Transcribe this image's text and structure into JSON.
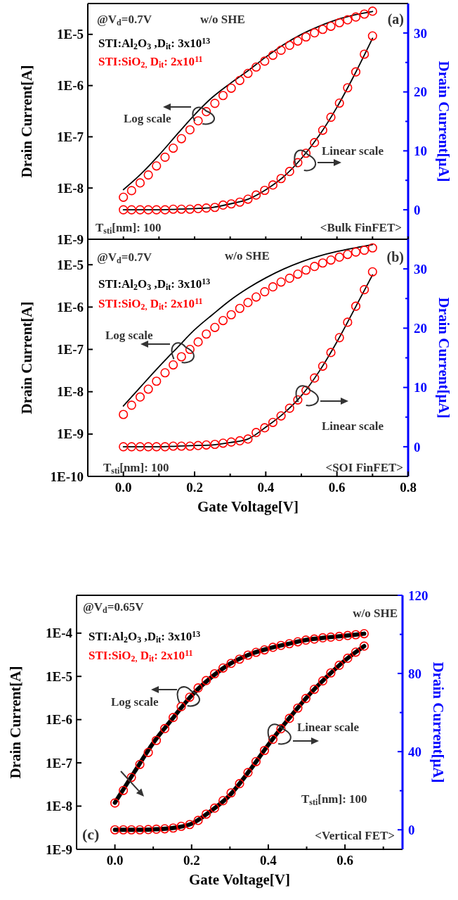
{
  "chart_data": [
    {
      "type": "line",
      "log": "y",
      "legend": "top left",
      "tick_labels": "y",
      "ylabel": "Drain Current[A]",
      "y2label": "Drain Current[μA]",
      "xlim": [
        -0.1,
        0.8
      ],
      "xticks": [
        {
          "value": 0,
          "label": null
        },
        {
          "value": 0.1,
          "label": null
        },
        {
          "value": 0.2,
          "label": null
        },
        {
          "value": 0.3,
          "label": null
        },
        {
          "value": 0.4,
          "label": null
        },
        {
          "value": 0.5,
          "label": null
        },
        {
          "value": 0.6,
          "label": null
        },
        {
          "value": 0.7,
          "label": null
        },
        {
          "value": 0.8,
          "label": null
        }
      ],
      "ylim": [
        1e-09,
        4e-05
      ],
      "yticks": [
        {
          "value": 1e-09,
          "label": "1E-9"
        },
        {
          "value": 1e-08,
          "label": "1E-8"
        },
        {
          "value": 1e-07,
          "label": "1E-7"
        },
        {
          "value": 1e-06,
          "label": "1E-6"
        },
        {
          "value": 1e-05,
          "label": "1E-5"
        }
      ],
      "y2lim": [
        -5,
        35
      ],
      "y2ticks": [
        0,
        {
          "value": 5,
          "label": null
        },
        10,
        {
          "value": 15,
          "label": null
        },
        20,
        {
          "value": 25,
          "label": null
        },
        30
      ],
      "annotations": [
        "@V$_{d}$=0.7V",
        "w/o SHE",
        "(a)",
        "Log scale",
        "Linear scale",
        "T$_{sti}$[nm]: 100",
        "<Bulk FinFET>"
      ],
      "series": [
        {
          "name": "STI:Al$_{2}$O$_{3}$ ,D$_{it}$: 3x10$^{13}$",
          "color": "#000000",
          "x": [
            0,
            0.05,
            0.1,
            0.15,
            0.2,
            0.25,
            0.3,
            0.35,
            0.4,
            0.45,
            0.5,
            0.55,
            0.6,
            0.65,
            0.7
          ],
          "values": [
            9.3e-09,
            1.9e-08,
            4.4e-08,
            1.1e-07,
            2.7e-07,
            5.9e-07,
            1.1e-06,
            1.95e-06,
            3.6e-06,
            6.3e-06,
            1e-05,
            1.44e-05,
            1.94e-05,
            2.4e-05,
            2.8e-05
          ]
        },
        {
          "name": "STI:SiO$_{2,}$ D$_{it}$: 2x10$^{11}$",
          "type": "scatter",
          "marker": "circle",
          "color": "#ff0000",
          "x": [
            0,
            0.023,
            0.047,
            0.07,
            0.093,
            0.117,
            0.14,
            0.163,
            0.187,
            0.21,
            0.233,
            0.257,
            0.28,
            0.303,
            0.327,
            0.35,
            0.373,
            0.397,
            0.42,
            0.443,
            0.467,
            0.49,
            0.513,
            0.537,
            0.56,
            0.583,
            0.607,
            0.63,
            0.653,
            0.677,
            0.7
          ],
          "values": [
            6.6e-09,
            8.9e-09,
            1.26e-08,
            1.8e-08,
            2.7e-08,
            4e-08,
            6e-08,
            9.2e-08,
            1.37e-07,
            2.05e-07,
            3.1e-07,
            4.5e-07,
            6.4e-07,
            8.9e-07,
            1.26e-06,
            1.73e-06,
            2.3e-06,
            3e-06,
            3.9e-06,
            4.9e-06,
            6.1e-06,
            7.4e-06,
            8.9e-06,
            1.07e-05,
            1.25e-05,
            1.44e-05,
            1.69e-05,
            1.92e-05,
            2.18e-05,
            2.49e-05,
            2.83e-05
          ]
        },
        {
          "axis": "y2",
          "color": "#000000",
          "x": [
            0,
            0.05,
            0.1,
            0.15,
            0.2,
            0.25,
            0.3,
            0.35,
            0.4,
            0.45,
            0.5,
            0.55,
            0.6,
            0.65,
            0.7
          ],
          "values": [
            0,
            0,
            0,
            0.1,
            0.2,
            0.4,
            1.0,
            1.8,
            3.4,
            5.6,
            8.7,
            12.6,
            17.4,
            23.0,
            29.1
          ]
        },
        {
          "type": "scatter",
          "marker": "circle",
          "axis": "y2",
          "color": "#ff0000",
          "x": [
            0,
            0.023,
            0.047,
            0.07,
            0.093,
            0.117,
            0.14,
            0.163,
            0.187,
            0.21,
            0.233,
            0.257,
            0.28,
            0.303,
            0.327,
            0.35,
            0.373,
            0.397,
            0.42,
            0.443,
            0.467,
            0.49,
            0.513,
            0.537,
            0.56,
            0.583,
            0.607,
            0.63,
            0.653,
            0.677,
            0.7
          ],
          "values": [
            0,
            0,
            0,
            0,
            0,
            0,
            0.1,
            0.1,
            0.1,
            0.2,
            0.3,
            0.4,
            0.8,
            1.0,
            1.3,
            1.8,
            2.5,
            3.3,
            4.2,
            5.3,
            6.5,
            8.0,
            9.6,
            11.4,
            13.5,
            15.7,
            18.1,
            20.7,
            23.4,
            26.4,
            29.5
          ]
        }
      ]
    },
    {
      "type": "line",
      "log": "y",
      "legend": "top left",
      "xlabel": "Gate Voltage[V]",
      "ylabel": "Drain Current[A]",
      "y2label": "Drain Current[μA]",
      "xlim": [
        -0.1,
        0.8
      ],
      "xticks": [
        {
          "value": 0,
          "label": "0.0"
        },
        {
          "value": 0.1,
          "label": null
        },
        {
          "value": 0.2,
          "label": "0.2"
        },
        {
          "value": 0.3,
          "label": null
        },
        {
          "value": 0.4,
          "label": "0.4"
        },
        {
          "value": 0.5,
          "label": null
        },
        {
          "value": 0.6,
          "label": "0.6"
        },
        {
          "value": 0.7,
          "label": null
        },
        {
          "value": 0.8,
          "label": "0.8"
        }
      ],
      "ylim": [
        1e-10,
        4e-05
      ],
      "yticks": [
        {
          "value": 1e-10,
          "label": "1E-10"
        },
        {
          "value": 1e-09,
          "label": "1E-9"
        },
        {
          "value": 1e-08,
          "label": "1E-8"
        },
        {
          "value": 1e-07,
          "label": "1E-7"
        },
        {
          "value": 1e-06,
          "label": "1E-6"
        },
        {
          "value": 1e-05,
          "label": "1E-5"
        }
      ],
      "y2lim": [
        -5,
        35
      ],
      "y2ticks": [
        0,
        {
          "value": 5,
          "label": null
        },
        10,
        {
          "value": 15,
          "label": null
        },
        20,
        {
          "value": 25,
          "label": null
        },
        30
      ],
      "annotations": [
        "@V$_{d}$=0.7V",
        "w/o SHE",
        "(b)",
        "Log scale",
        "Linear scale",
        "T$_{sti}$[nm]: 100",
        "<SOI FinFET>"
      ],
      "series": [
        {
          "name": "STI:Al$_{2}$O$_{3}$ ,D$_{it}$: 3x10$^{13}$",
          "color": "#000000",
          "x": [
            0,
            0.05,
            0.1,
            0.15,
            0.2,
            0.25,
            0.3,
            0.35,
            0.4,
            0.45,
            0.5,
            0.55,
            0.6,
            0.65,
            0.7
          ],
          "values": [
            4.6e-09,
            1.35e-08,
            3.9e-08,
            1.07e-07,
            2.9e-07,
            6.6e-07,
            1.45e-06,
            2.8e-06,
            4.9e-06,
            7.9e-06,
            1.17e-05,
            1.6e-05,
            2.05e-05,
            2.5e-05,
            3e-05
          ]
        },
        {
          "name": "STI:SiO$_{2,}$ D$_{it}$: 2x10$^{11}$",
          "type": "scatter",
          "marker": "circle",
          "color": "#ff0000",
          "x": [
            0,
            0.023,
            0.047,
            0.07,
            0.093,
            0.117,
            0.14,
            0.163,
            0.187,
            0.21,
            0.233,
            0.257,
            0.28,
            0.303,
            0.327,
            0.35,
            0.373,
            0.397,
            0.42,
            0.443,
            0.467,
            0.49,
            0.513,
            0.537,
            0.56,
            0.583,
            0.607,
            0.63,
            0.653,
            0.677,
            0.7
          ],
          "values": [
            2.9e-09,
            4.8e-09,
            7.5e-09,
            1.15e-08,
            1.77e-08,
            2.8e-08,
            4.3e-08,
            6.7e-08,
            1e-07,
            1.5e-07,
            2.3e-07,
            3.3e-07,
            4.8e-07,
            6.6e-07,
            9.3e-07,
            1.28e-06,
            1.73e-06,
            2.3e-06,
            3e-06,
            3.9e-06,
            4.8e-06,
            6e-06,
            7.5e-06,
            9.1e-06,
            1.1e-05,
            1.29e-05,
            1.51e-05,
            1.75e-05,
            2e-05,
            2.2e-05,
            2.5e-05
          ]
        },
        {
          "axis": "y2",
          "color": "#000000",
          "x": [
            0,
            0.05,
            0.1,
            0.15,
            0.2,
            0.25,
            0.3,
            0.35,
            0.4,
            0.45,
            0.5,
            0.55,
            0.6,
            0.65,
            0.7
          ],
          "values": [
            0,
            0,
            0,
            0.1,
            0.2,
            0.3,
            0.7,
            1.3,
            3.3,
            5.6,
            8.6,
            12.7,
            17.7,
            23.3,
            29.0
          ]
        },
        {
          "type": "scatter",
          "marker": "circle",
          "axis": "y2",
          "color": "#ff0000",
          "x": [
            0,
            0.023,
            0.047,
            0.07,
            0.093,
            0.117,
            0.14,
            0.163,
            0.187,
            0.21,
            0.233,
            0.257,
            0.28,
            0.303,
            0.327,
            0.35,
            0.373,
            0.397,
            0.42,
            0.443,
            0.467,
            0.49,
            0.513,
            0.537,
            0.56,
            0.583,
            0.607,
            0.63,
            0.653,
            0.677,
            0.7
          ],
          "values": [
            0,
            0,
            0,
            0,
            0,
            0,
            0.1,
            0.1,
            0.1,
            0.2,
            0.3,
            0.4,
            0.6,
            0.8,
            1.0,
            1.3,
            2.4,
            3.2,
            4.1,
            5.2,
            6.5,
            7.9,
            9.5,
            11.6,
            13.6,
            15.9,
            18.4,
            21.0,
            23.7,
            26.5,
            29.5
          ]
        }
      ]
    },
    {
      "type": "line",
      "log": "y",
      "legend": "top left",
      "xlabel": "Gate Voltage[V]",
      "ylabel": "Drain Current[A]",
      "y2label": "Drain Current[μA]",
      "xlim": [
        -0.1,
        0.75
      ],
      "xticks": [
        {
          "value": 0,
          "label": "0.0"
        },
        {
          "value": 0.1,
          "label": null
        },
        {
          "value": 0.2,
          "label": "0.2"
        },
        {
          "value": 0.3,
          "label": null
        },
        {
          "value": 0.4,
          "label": "0.4"
        },
        {
          "value": 0.5,
          "label": null
        },
        {
          "value": 0.6,
          "label": "0.6"
        },
        {
          "value": 0.7,
          "label": null
        }
      ],
      "ylim": [
        1e-09,
        0.00075
      ],
      "yticks": [
        {
          "value": 1e-09,
          "label": "1E-9"
        },
        {
          "value": 1e-08,
          "label": "1E-8"
        },
        {
          "value": 1e-07,
          "label": "1E-7"
        },
        {
          "value": 1e-06,
          "label": "1E-6"
        },
        {
          "value": 1e-05,
          "label": "1E-5"
        },
        {
          "value": 0.0001,
          "label": "1E-4"
        }
      ],
      "y2lim": [
        -10,
        120
      ],
      "y2ticks": [
        0,
        {
          "value": 20,
          "label": null
        },
        40,
        {
          "value": 60,
          "label": null
        },
        80,
        {
          "value": 100,
          "label": null
        },
        120
      ],
      "annotations": [
        "@V$_{d}$=0.65V",
        "w/o SHE",
        "(c)",
        "Log scale",
        "Linear scale",
        "T$_{sti}$[nm]: 100",
        "<Vertical FET>"
      ],
      "series": [
        {
          "name": "STI:Al$_{2}$O$_{3}$ ,D$_{it}$: 3x10$^{13}$",
          "color": "#000000",
          "x": [
            0,
            0.05,
            0.1,
            0.15,
            0.2,
            0.25,
            0.3,
            0.35,
            0.4,
            0.45,
            0.5,
            0.55,
            0.6,
            0.65
          ],
          "values": [
            1.2e-08,
            6e-08,
            2.9e-07,
            1.05e-06,
            3.6e-06,
            9.3e-06,
            1.95e-05,
            3.2e-05,
            4.4e-05,
            5.6e-05,
            7e-05,
            7.9e-05,
            8.7e-05,
            9.7e-05
          ]
        },
        {
          "name": "STI:SiO$_{2,}$ D$_{it}$: 2x10$^{11}$",
          "type": "scatter",
          "marker": "circle",
          "color": "#ff0000",
          "x": [
            0,
            0.022,
            0.043,
            0.065,
            0.087,
            0.108,
            0.13,
            0.152,
            0.173,
            0.195,
            0.217,
            0.238,
            0.26,
            0.282,
            0.303,
            0.325,
            0.347,
            0.368,
            0.39,
            0.412,
            0.433,
            0.455,
            0.477,
            0.498,
            0.52,
            0.542,
            0.563,
            0.585,
            0.607,
            0.628,
            0.65
          ],
          "values": [
            1.18e-08,
            2.3e-08,
            4.6e-08,
            9.2e-08,
            1.74e-07,
            3.3e-07,
            6.2e-07,
            1.12e-06,
            2e-06,
            3.3e-06,
            5.4e-06,
            8e-06,
            1.15e-05,
            1.56e-05,
            2e-05,
            2.5e-05,
            3.1e-05,
            3.6e-05,
            4.1e-05,
            4.7e-05,
            5.2e-05,
            5.7e-05,
            6.3e-05,
            6.9e-05,
            7.3e-05,
            7.8e-05,
            8.1e-05,
            8.4e-05,
            8.8e-05,
            9.2e-05,
            9.7e-05
          ]
        },
        {
          "axis": "y2",
          "color": "#000000",
          "x": [
            0,
            0.05,
            0.1,
            0.15,
            0.2,
            0.25,
            0.3,
            0.35,
            0.4,
            0.45,
            0.5,
            0.55,
            0.6,
            0.65
          ],
          "values": [
            0,
            0,
            0.2,
            0.9,
            3.1,
            9.6,
            17.8,
            30,
            43.5,
            56,
            67.7,
            77.8,
            86.7,
            94
          ]
        },
        {
          "type": "scatter",
          "marker": "circle",
          "axis": "y2",
          "color": "#ff0000",
          "x": [
            0,
            0.022,
            0.043,
            0.065,
            0.087,
            0.108,
            0.13,
            0.152,
            0.173,
            0.195,
            0.217,
            0.238,
            0.26,
            0.282,
            0.303,
            0.325,
            0.347,
            0.368,
            0.39,
            0.412,
            0.433,
            0.455,
            0.477,
            0.498,
            0.52,
            0.542,
            0.563,
            0.585,
            0.607,
            0.628,
            0.65
          ],
          "values": [
            0,
            0,
            0,
            0,
            0.1,
            0.3,
            0.5,
            0.9,
            1.8,
            2.7,
            4.8,
            8.0,
            11.1,
            14.9,
            18.9,
            23.6,
            29.3,
            34.9,
            40.6,
            46.3,
            51.7,
            57.0,
            62.3,
            67.2,
            71.9,
            76.2,
            80.3,
            84.2,
            87.8,
            90.9,
            94.0
          ]
        }
      ]
    }
  ]
}
